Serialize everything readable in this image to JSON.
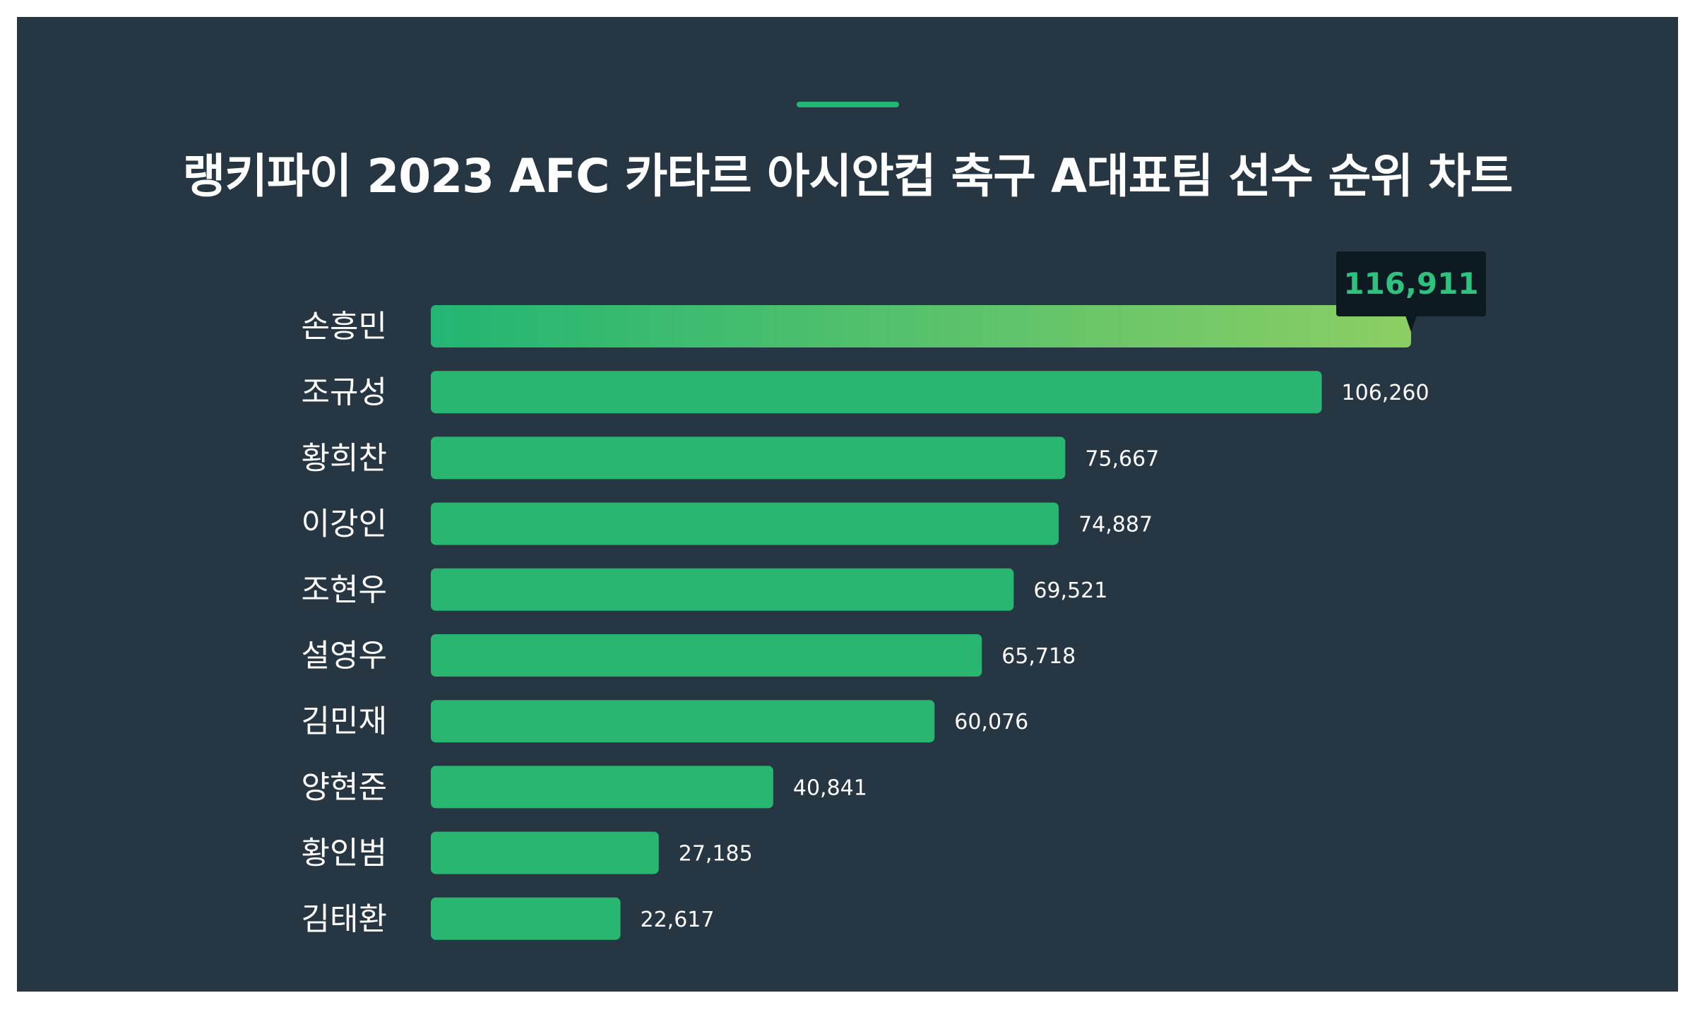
{
  "title": "랭키파이 2023 AFC 카타르 아시안컵 축구 A대표팀 선수 순위 차트",
  "colors": {
    "background": "#263642",
    "bar": "#28b670",
    "top_bar_gradient_start": "#22b573",
    "top_bar_gradient_end": "#8cce64",
    "callout_bg": "#0d1a22",
    "callout_text": "#2ec27e",
    "label_text": "#ffffff"
  },
  "chart_data": {
    "type": "bar",
    "orientation": "horizontal",
    "categories": [
      "손흥민",
      "조규성",
      "황희찬",
      "이강인",
      "조현우",
      "설영우",
      "김민재",
      "양현준",
      "황인범",
      "김태환"
    ],
    "values": [
      116911,
      106260,
      75667,
      74887,
      69521,
      65718,
      60076,
      40841,
      27185,
      22617
    ],
    "value_labels": [
      "116,911",
      "106,260",
      "75,667",
      "74,887",
      "69,521",
      "65,718",
      "60,076",
      "40,841",
      "27,185",
      "22,617"
    ],
    "highlight_index": 0,
    "title": "랭키파이 2023 AFC 카타르 아시안컵 축구 A대표팀 선수 순위 차트",
    "xlabel": "",
    "ylabel": "",
    "grid": false,
    "legend": "none"
  }
}
